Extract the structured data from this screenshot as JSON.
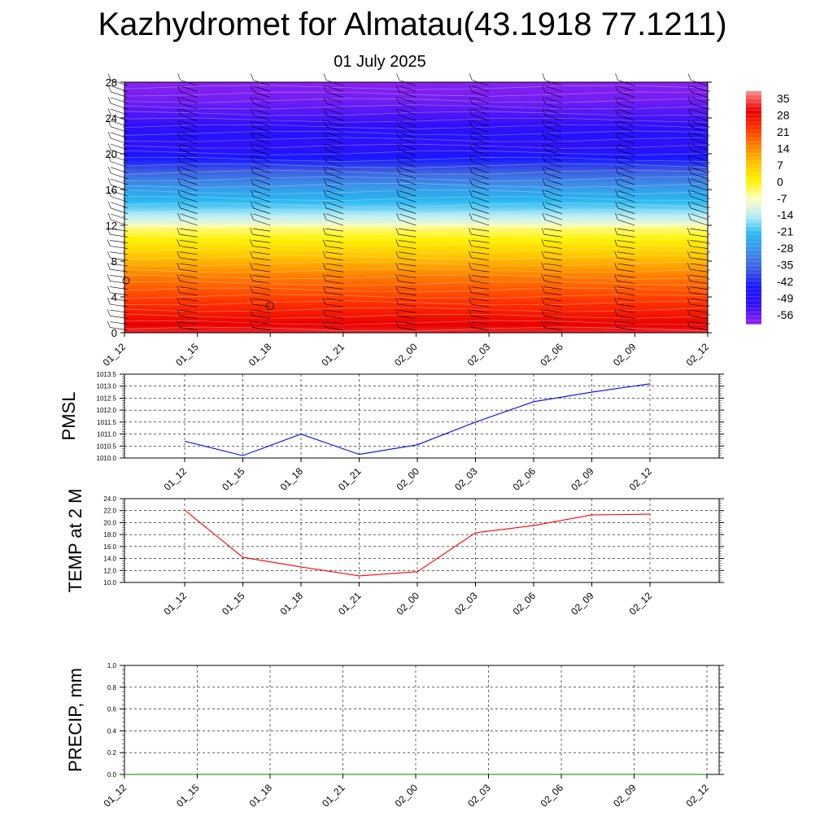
{
  "title": "Kazhydromet for Almatau(43.1918 77.1211)",
  "subtitle": "01 July 2025",
  "chart_data": [
    {
      "type": "heatmap",
      "title": "",
      "ylabel": "",
      "x": [
        "01_12",
        "01_15",
        "01_18",
        "01_21",
        "02_00",
        "02_03",
        "02_06",
        "02_09",
        "02_12"
      ],
      "y_ticks": [
        0,
        4,
        8,
        12,
        16,
        20,
        24,
        28
      ],
      "ylim": [
        0,
        28
      ],
      "profile_levels": [
        0,
        2,
        4,
        6,
        8,
        10,
        11.8,
        12.2,
        14,
        16,
        18,
        20,
        21,
        22,
        24,
        26,
        28
      ],
      "profile_values": [
        30,
        24,
        18,
        13,
        6,
        -2,
        -9,
        -14,
        -24,
        -32,
        -42,
        -53,
        -58,
        -55,
        -60,
        -64,
        -66
      ],
      "colorbar": {
        "labels": [
          "35",
          "28",
          "21",
          "14",
          "7",
          "0",
          "-7",
          "-14",
          "-21",
          "-28",
          "-35",
          "-42",
          "-49",
          "-56"
        ],
        "stops": [
          "#ff7f7f",
          "#e80000",
          "#ff3300",
          "#ff8000",
          "#ffc400",
          "#fff200",
          "#ffffc0",
          "#b8ecf8",
          "#29b8f0",
          "#3d8fe8",
          "#3c5de0",
          "#1818ff",
          "#3010f8",
          "#8822f0"
        ]
      },
      "wind_barbs": "present"
    },
    {
      "type": "line",
      "ylabel": "PMSL",
      "x": [
        "01_12",
        "01_15",
        "01_18",
        "01_21",
        "02_00",
        "02_03",
        "02_06",
        "02_09",
        "02_12"
      ],
      "series": [
        {
          "values": [
            1010.7,
            1010.1,
            1011.0,
            1010.15,
            1010.55,
            1011.5,
            1012.35,
            1012.75,
            1013.1
          ]
        }
      ],
      "y_ticks": [
        "1010.0",
        "1010.5",
        "1011.0",
        "1011.5",
        "1012.0",
        "1012.5",
        "1013.0",
        "1013.5"
      ],
      "ylim": [
        1010.0,
        1013.5
      ],
      "color": "#0000ff",
      "grid": true
    },
    {
      "type": "line",
      "ylabel": "TEMP at 2 M",
      "x": [
        "01_12",
        "01_15",
        "01_18",
        "01_21",
        "02_00",
        "02_03",
        "02_06",
        "02_09",
        "02_12"
      ],
      "series": [
        {
          "values": [
            22.1,
            14.2,
            12.6,
            11.1,
            11.8,
            18.3,
            19.5,
            21.3,
            21.4
          ]
        }
      ],
      "y_ticks": [
        "10.0",
        "12.0",
        "14.0",
        "16.0",
        "18.0",
        "20.0",
        "22.0",
        "24.0"
      ],
      "ylim": [
        10.0,
        24.0
      ],
      "color": "#ff0000",
      "grid": true
    },
    {
      "type": "line",
      "ylabel": "PRECIP, mm",
      "x": [
        "01_12",
        "01_15",
        "01_18",
        "01_21",
        "02_00",
        "02_03",
        "02_06",
        "02_09",
        "02_12"
      ],
      "series": [
        {
          "values": [
            0,
            0,
            0,
            0,
            0,
            0,
            0,
            0,
            0
          ]
        }
      ],
      "y_ticks": [
        "0.0",
        "0.2",
        "0.4",
        "0.6",
        "0.8",
        "1.0"
      ],
      "ylim": [
        0.0,
        1.0
      ],
      "color": "#008000",
      "grid": true
    }
  ]
}
